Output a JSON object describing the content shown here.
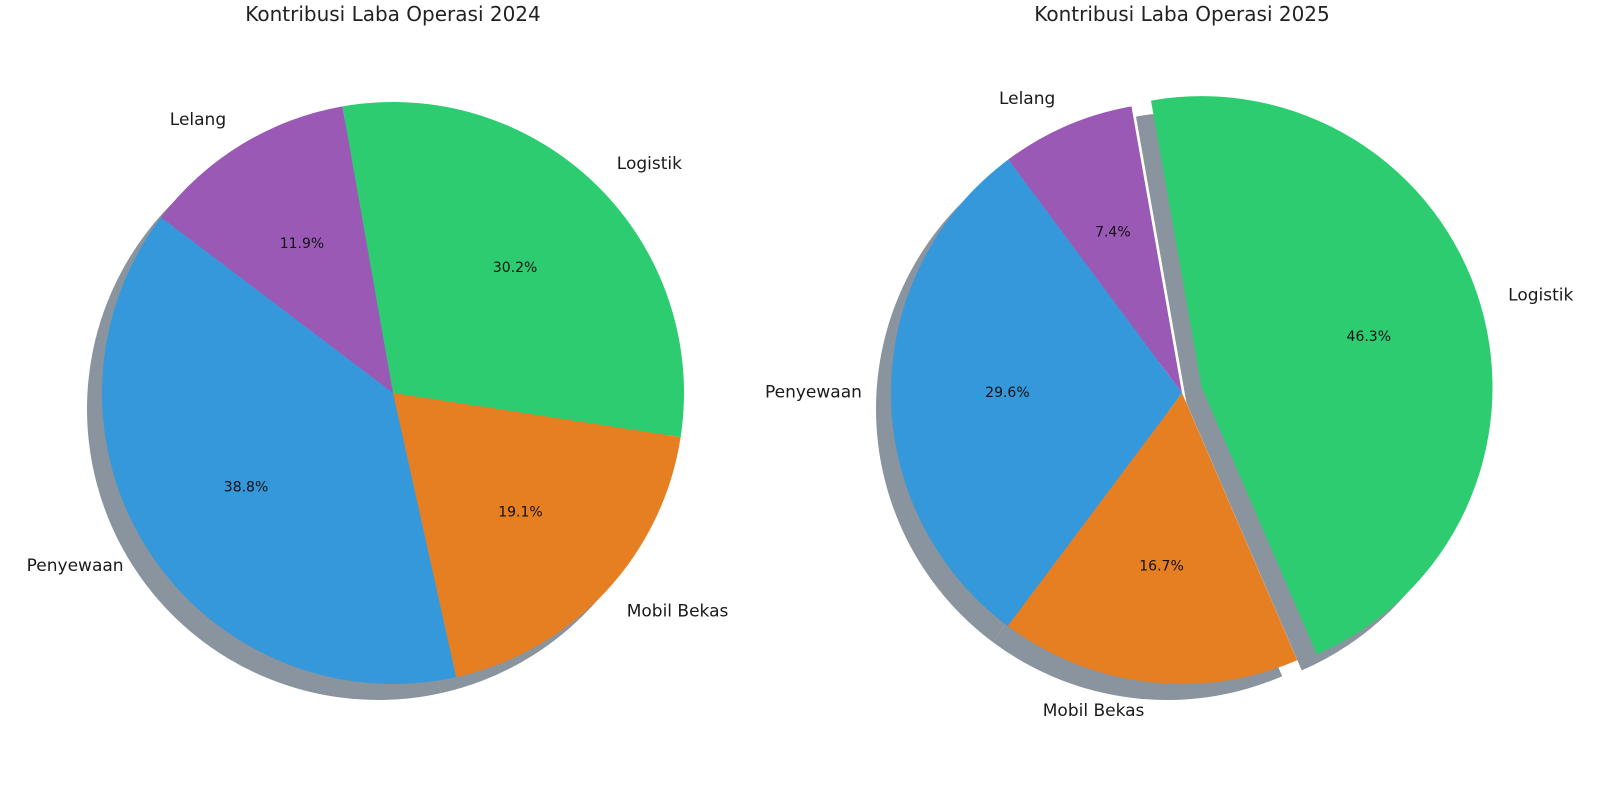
{
  "colors": {
    "Logistik": "#2ecc71",
    "Mobil Bekas": "#e67e22",
    "Penyewaan": "#3498db",
    "Lelang": "#9b59b6",
    "shadow": "#4a5a6a"
  },
  "chart_data": [
    {
      "type": "pie",
      "title": "Kontribusi Laba Operasi 2024",
      "categories": [
        "Logistik",
        "Mobil Bekas",
        "Penyewaan",
        "Lelang"
      ],
      "values": [
        30.2,
        19.1,
        38.8,
        11.9
      ],
      "value_labels": [
        "30.2%",
        "19.1%",
        "38.8%",
        "11.9%"
      ],
      "start_angle_deg": 100,
      "direction": "clockwise",
      "exploded": [],
      "shadow": true,
      "legend": "none"
    },
    {
      "type": "pie",
      "title": "Kontribusi Laba Operasi 2025",
      "categories": [
        "Logistik",
        "Mobil Bekas",
        "Penyewaan",
        "Lelang"
      ],
      "values": [
        46.3,
        16.7,
        29.6,
        7.4
      ],
      "value_labels": [
        "46.3%",
        "16.7%",
        "29.6%",
        "7.4%"
      ],
      "start_angle_deg": 100,
      "direction": "clockwise",
      "exploded": [
        "Logistik"
      ],
      "shadow": true,
      "legend": "none"
    }
  ]
}
